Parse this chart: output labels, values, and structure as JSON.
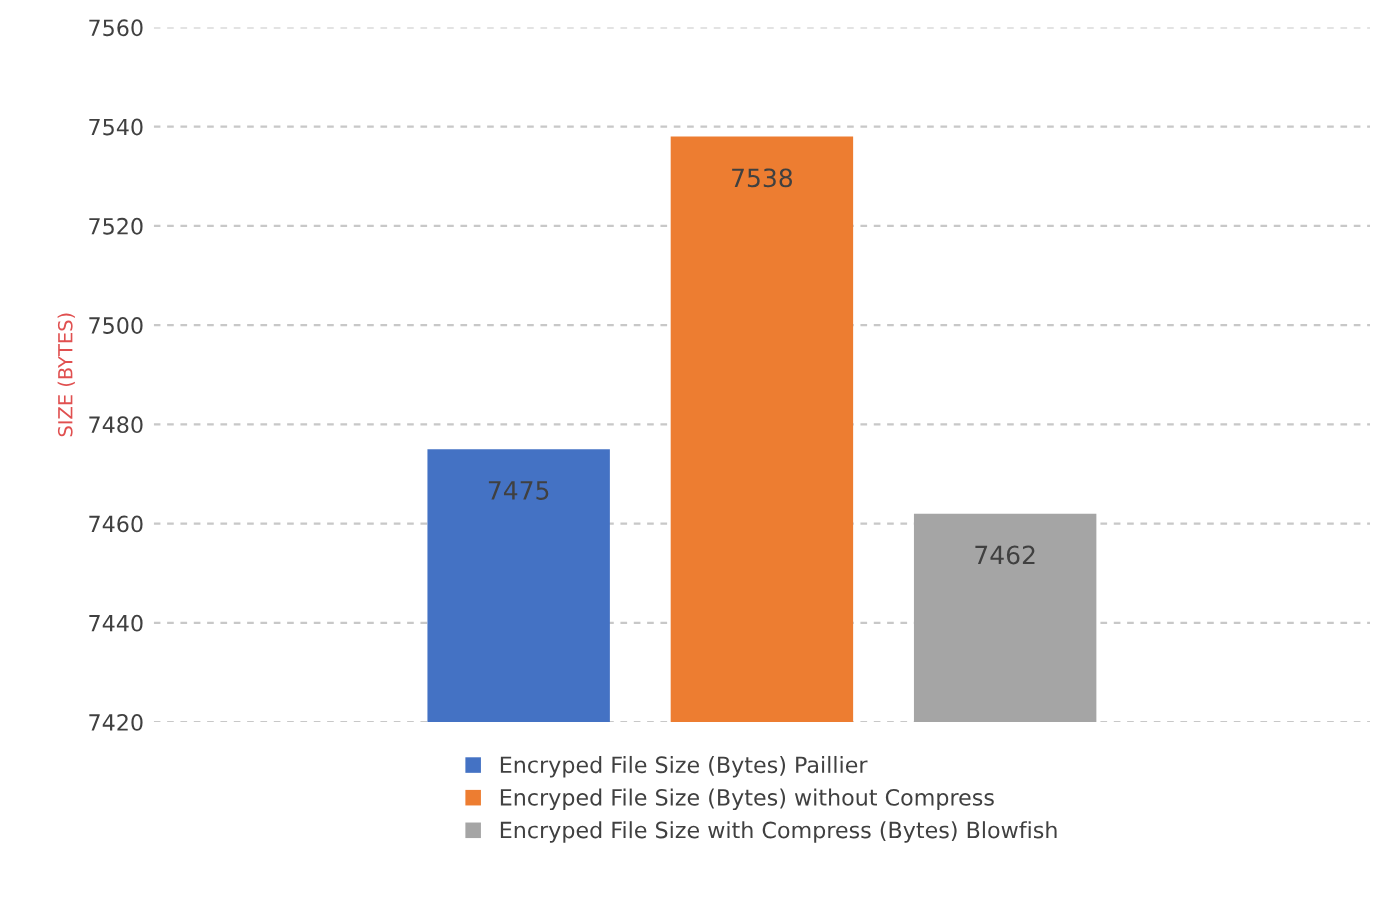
{
  "chart_data": {
    "type": "bar",
    "ylabel": "SIZE (BYTES)",
    "categories": [
      null
    ],
    "series": [
      {
        "name": "Encryped File Size (Bytes) Paillier",
        "color": "#4472c4",
        "values": [
          7475
        ]
      },
      {
        "name": "Encryped File Size (Bytes) without Compress",
        "color": "#ed7d31",
        "values": [
          7538
        ]
      },
      {
        "name": "Encryped File Size with Compress (Bytes) Blowfish",
        "color": "#a5a5a5",
        "values": [
          7462
        ]
      }
    ],
    "ylim": [
      7420,
      7560
    ],
    "yticks": [
      7420,
      7440,
      7460,
      7480,
      7500,
      7520,
      7540,
      7560
    ],
    "grid": "y",
    "legend": "bottom",
    "data_labels": true
  }
}
